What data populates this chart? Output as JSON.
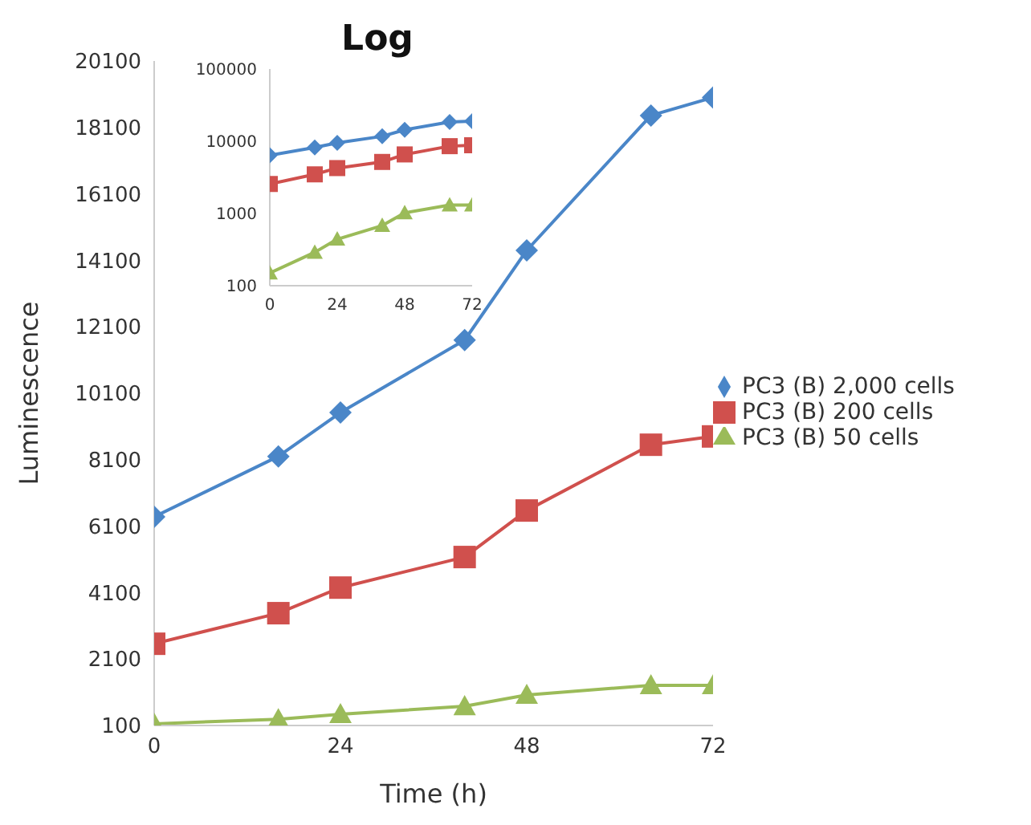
{
  "chart_data": [
    {
      "type": "line",
      "xlabel": "Time (h)",
      "ylabel": "Luminescence",
      "x": [
        0,
        16,
        24,
        40,
        48,
        64,
        72
      ],
      "xlim": [
        0,
        72
      ],
      "xticks": [
        0,
        24,
        48,
        72
      ],
      "ylim": [
        100,
        20100
      ],
      "yticks": [
        100,
        2100,
        4100,
        6100,
        8100,
        10100,
        12100,
        14100,
        16100,
        18100,
        20100
      ],
      "grid": false,
      "legend": "right",
      "series": [
        {
          "name": "PC3 (B) 2,000 cells",
          "color": "#4a86c8",
          "marker": "diamond",
          "values": [
            6380,
            8200,
            9520,
            11700,
            14400,
            18460,
            19000
          ]
        },
        {
          "name": "PC3 (B) 200 cells",
          "color": "#d0504d",
          "marker": "square",
          "values": [
            2560,
            3480,
            4250,
            5170,
            6570,
            8550,
            8800
          ]
        },
        {
          "name": "PC3 (B) 50 cells",
          "color": "#9bbb59",
          "marker": "triangle",
          "values": [
            150,
            290,
            440,
            680,
            1020,
            1310,
            1310
          ]
        }
      ]
    },
    {
      "type": "line",
      "title": "Log",
      "x": [
        0,
        16,
        24,
        40,
        48,
        64,
        72
      ],
      "xlim": [
        0,
        72
      ],
      "xticks": [
        0,
        24,
        48,
        72
      ],
      "log": "y",
      "ylim": [
        100,
        100000
      ],
      "yticks": [
        100,
        1000,
        10000,
        100000
      ],
      "grid": false,
      "legend": false,
      "series": [
        {
          "color": "#4a86c8",
          "marker": "diamond",
          "values": [
            6380,
            8200,
            9520,
            11700,
            14400,
            18460,
            19000
          ]
        },
        {
          "color": "#d0504d",
          "marker": "square",
          "values": [
            2560,
            3480,
            4250,
            5170,
            6570,
            8550,
            8800
          ]
        },
        {
          "color": "#9bbb59",
          "marker": "triangle",
          "values": [
            150,
            290,
            440,
            680,
            1020,
            1310,
            1310
          ]
        }
      ]
    }
  ]
}
